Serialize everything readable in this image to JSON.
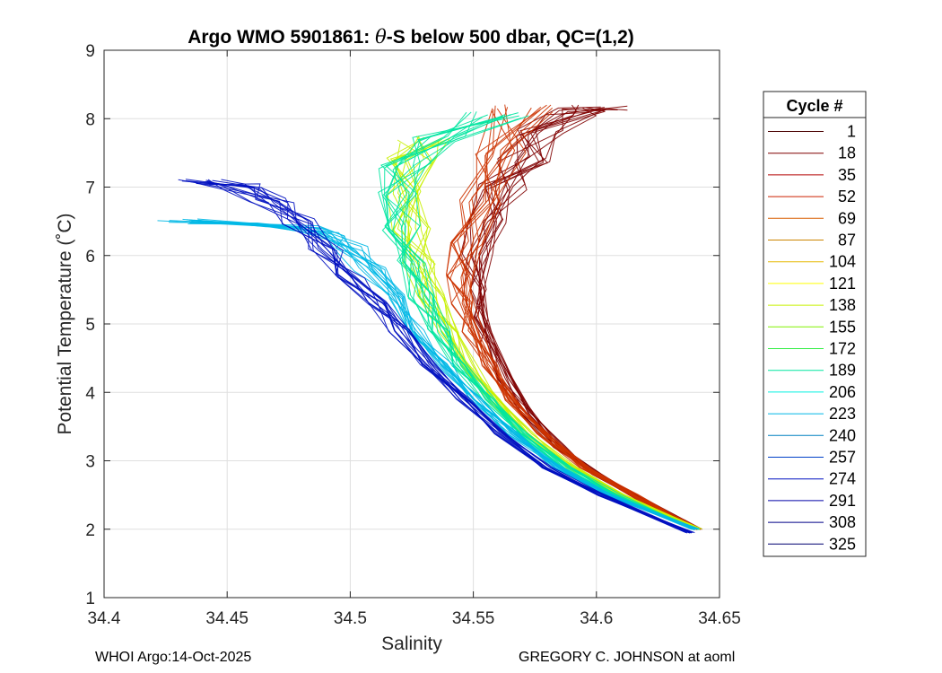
{
  "chart_data": {
    "type": "line",
    "title_prefix": "Argo WMO 5901861: ",
    "title_theta": "θ",
    "title_suffix": "-S below 500 dbar,  QC=(1,2)",
    "xlabel": "Salinity",
    "ylabel": "Potential Temperature (˚C)",
    "xlim": [
      34.4,
      34.65
    ],
    "ylim": [
      1,
      9
    ],
    "xticks": [
      34.4,
      34.45,
      34.5,
      34.55,
      34.6,
      34.65
    ],
    "xtick_labels": [
      "34.4",
      "34.45",
      "34.5",
      "34.55",
      "34.6",
      "34.65"
    ],
    "yticks": [
      1,
      2,
      3,
      4,
      5,
      6,
      7,
      8,
      9
    ],
    "ytick_labels": [
      "1",
      "2",
      "3",
      "4",
      "5",
      "6",
      "7",
      "8",
      "9"
    ],
    "grid": true,
    "legend": {
      "title": "Cycle #",
      "placement": "right-outside",
      "entries": [
        {
          "label": "1",
          "color": "#4a0000"
        },
        {
          "label": "18",
          "color": "#800000"
        },
        {
          "label": "35",
          "color": "#b30000"
        },
        {
          "label": "52",
          "color": "#cc2200"
        },
        {
          "label": "69",
          "color": "#d95f00"
        },
        {
          "label": "87",
          "color": "#cc8400"
        },
        {
          "label": "104",
          "color": "#e6b800"
        },
        {
          "label": "121",
          "color": "#ffff00"
        },
        {
          "label": "138",
          "color": "#c8f000"
        },
        {
          "label": "155",
          "color": "#80f000"
        },
        {
          "label": "172",
          "color": "#33ee44"
        },
        {
          "label": "189",
          "color": "#00e6a0"
        },
        {
          "label": "206",
          "color": "#00f0e0"
        },
        {
          "label": "223",
          "color": "#00b8e6"
        },
        {
          "label": "240",
          "color": "#0080c0"
        },
        {
          "label": "257",
          "color": "#0040c8"
        },
        {
          "label": "274",
          "color": "#0010c0"
        },
        {
          "label": "291",
          "color": "#0000a8"
        },
        {
          "label": "308",
          "color": "#000088"
        },
        {
          "label": "325",
          "color": "#000070"
        }
      ]
    },
    "series_profiles": [
      {
        "name": "cycles 1-35 (dark red)",
        "color": "#800000",
        "x": [
          34.641,
          34.62,
          34.6,
          34.585,
          34.572,
          34.563,
          34.556,
          34.552,
          34.55,
          34.551,
          34.555,
          34.562,
          34.57,
          34.58,
          34.593,
          34.6
        ],
        "y": [
          2.0,
          2.4,
          2.8,
          3.2,
          3.7,
          4.2,
          4.7,
          5.1,
          5.5,
          6.0,
          6.5,
          7.0,
          7.4,
          7.8,
          8.1,
          8.15
        ]
      },
      {
        "name": "cycles 52-104 (red-orange)",
        "color": "#cc3300",
        "x": [
          34.641,
          34.615,
          34.595,
          34.578,
          34.565,
          34.556,
          34.55,
          34.546,
          34.545,
          34.547,
          34.552,
          34.56,
          34.57
        ],
        "y": [
          2.0,
          2.5,
          2.9,
          3.4,
          3.9,
          4.4,
          4.9,
          5.3,
          5.7,
          6.2,
          6.8,
          7.5,
          8.15
        ]
      },
      {
        "name": "cycles 121-155 (yellow-green)",
        "color": "#c8f000",
        "x": [
          34.641,
          34.61,
          34.59,
          34.572,
          34.558,
          34.548,
          34.54,
          34.533,
          34.528,
          34.525,
          34.524,
          34.526,
          34.53
        ],
        "y": [
          2.0,
          2.5,
          2.9,
          3.4,
          3.9,
          4.4,
          4.9,
          5.4,
          5.9,
          6.4,
          6.9,
          7.4,
          7.7
        ]
      },
      {
        "name": "cycles 172-206 (green-cyan)",
        "color": "#00e6a0",
        "x": [
          34.64,
          34.608,
          34.588,
          34.57,
          34.556,
          34.545,
          34.536,
          34.529,
          34.524,
          34.521,
          34.52,
          34.522,
          34.535,
          34.56
        ],
        "y": [
          2.0,
          2.5,
          2.9,
          3.4,
          3.9,
          4.4,
          4.9,
          5.4,
          5.9,
          6.4,
          6.9,
          7.3,
          7.7,
          8.05
        ]
      },
      {
        "name": "cycles 223-257 (light blue)",
        "color": "#00b8e6",
        "x": [
          34.64,
          34.605,
          34.584,
          34.566,
          34.551,
          34.538,
          34.527,
          34.517,
          34.508,
          34.5,
          34.492,
          34.482,
          34.46,
          34.43
        ],
        "y": [
          2.0,
          2.5,
          2.9,
          3.4,
          3.9,
          4.4,
          4.9,
          5.4,
          5.8,
          6.1,
          6.3,
          6.4,
          6.45,
          6.5
        ]
      },
      {
        "name": "cycles 274-325 (dark blue)",
        "color": "#0010c0",
        "x": [
          34.638,
          34.602,
          34.58,
          34.561,
          34.546,
          34.532,
          34.52,
          34.51,
          34.5,
          34.49,
          34.48,
          34.468,
          34.455,
          34.44
        ],
        "y": [
          1.95,
          2.5,
          2.9,
          3.4,
          3.9,
          4.4,
          4.9,
          5.3,
          5.7,
          6.1,
          6.5,
          6.8,
          7.0,
          7.08
        ]
      }
    ]
  },
  "footer": {
    "left": "WHOI Argo:14-Oct-2025",
    "right": "GREGORY C. JOHNSON at aoml"
  }
}
